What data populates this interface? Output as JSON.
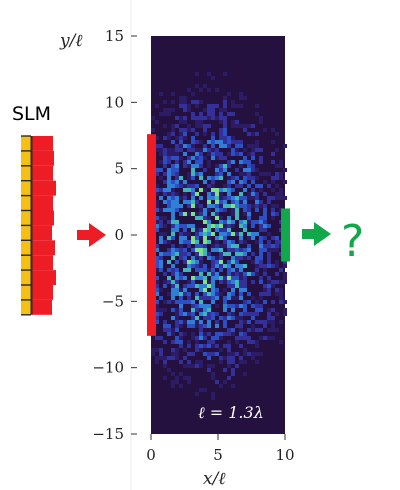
{
  "labels": {
    "slm": "SLM",
    "y_axis": "y/ℓ",
    "x_axis": "x/ℓ",
    "scale_annotation": "ℓ = 1.3λ",
    "unknown_output": "?"
  },
  "axes": {
    "x_ticks": [
      "0",
      "5",
      "10"
    ],
    "x_tick_values": [
      0,
      5,
      10
    ],
    "y_ticks": [
      "15",
      "10",
      "5",
      "0",
      "−5",
      "−10",
      "−15"
    ],
    "y_tick_values": [
      15,
      10,
      5,
      0,
      -5,
      -10,
      -15
    ],
    "x_range": [
      0,
      10
    ],
    "y_range": [
      -15,
      15
    ]
  },
  "markers": {
    "input_bar_y_range": [
      -7.6,
      7.6
    ],
    "output_bar_y_range": [
      -2.0,
      2.0
    ]
  },
  "slm_pixel_levels": [
    0.55,
    0.7,
    0.55,
    0.85,
    0.6,
    0.7,
    0.5,
    0.75,
    0.55,
    0.8,
    0.6,
    0.5
  ],
  "colors": {
    "input": "#ee1c25",
    "output": "#11a84c",
    "slm_pixels": "#f5c013",
    "field_background": "#25113f",
    "field_hot": "#6fe38a"
  }
}
